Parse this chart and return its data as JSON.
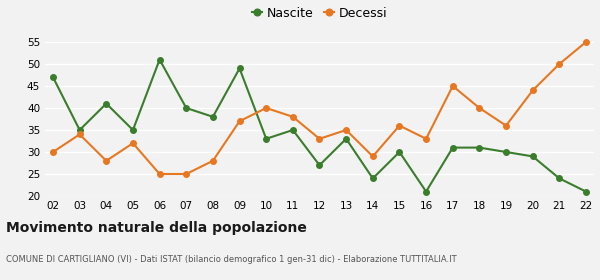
{
  "years": [
    "02",
    "03",
    "04",
    "05",
    "06",
    "07",
    "08",
    "09",
    "10",
    "11",
    "12",
    "13",
    "14",
    "15",
    "16",
    "17",
    "18",
    "19",
    "20",
    "21",
    "22"
  ],
  "nascite": [
    47,
    35,
    41,
    35,
    51,
    40,
    38,
    49,
    33,
    35,
    27,
    33,
    24,
    30,
    21,
    31,
    31,
    30,
    29,
    24,
    21
  ],
  "decessi": [
    30,
    34,
    28,
    32,
    25,
    25,
    28,
    37,
    40,
    38,
    33,
    35,
    29,
    36,
    33,
    45,
    40,
    36,
    44,
    50,
    55
  ],
  "nascite_color": "#3a7d2c",
  "decessi_color": "#e87722",
  "ylim_min": 20,
  "ylim_max": 55,
  "yticks": [
    20,
    25,
    30,
    35,
    40,
    45,
    50,
    55
  ],
  "title": "Movimento naturale della popolazione",
  "subtitle": "COMUNE DI CARTIGLIANO (VI) - Dati ISTAT (bilancio demografico 1 gen-31 dic) - Elaborazione TUTTITALIA.IT",
  "legend_nascite": "Nascite",
  "legend_decessi": "Decessi",
  "bg_color": "#f2f2f2",
  "grid_color": "#ffffff"
}
